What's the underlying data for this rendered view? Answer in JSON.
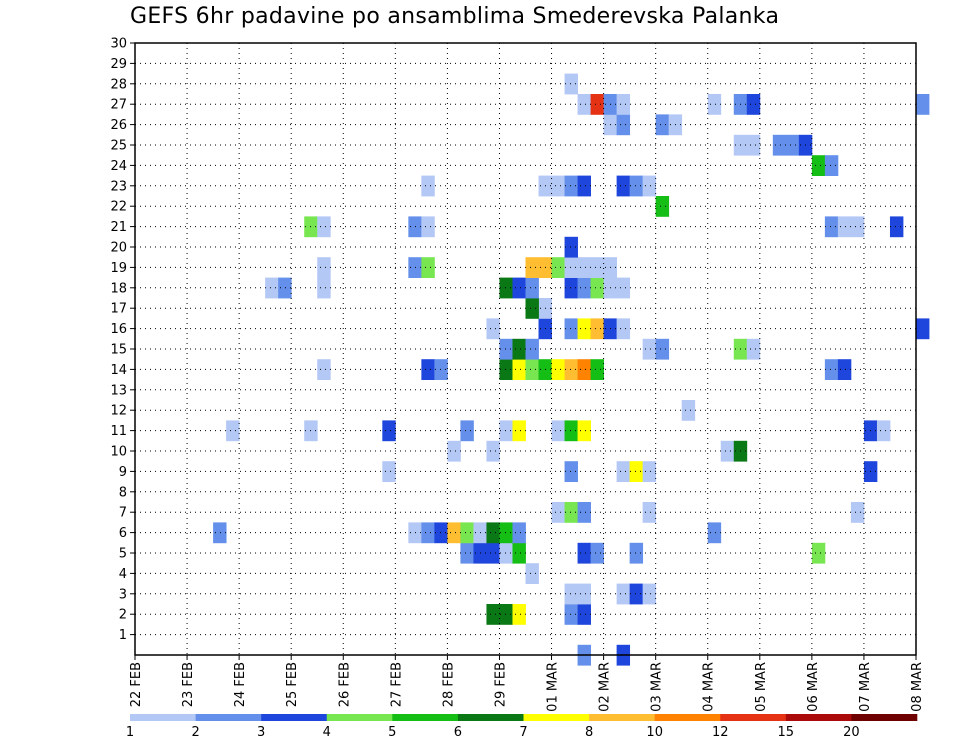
{
  "chart_data": {
    "type": "heatmap",
    "title": "GEFS 6hr padavine po ansamblima Smederevska Palanka",
    "x_ticks": [
      "22 FEB",
      "23 FEB",
      "24 FEB",
      "25 FEB",
      "26 FEB",
      "27 FEB",
      "28 FEB",
      "29 FEB",
      "01 MAR",
      "02 MAR",
      "03 MAR",
      "04 MAR",
      "05 MAR",
      "06 MAR",
      "07 MAR",
      "08 MAR"
    ],
    "y_ticks": [
      "1",
      "2",
      "3",
      "4",
      "5",
      "6",
      "7",
      "8",
      "9",
      "10",
      "11",
      "12",
      "13",
      "14",
      "15",
      "16",
      "17",
      "18",
      "19",
      "20",
      "21",
      "22",
      "23",
      "24",
      "25",
      "26",
      "27",
      "28",
      "29",
      "30"
    ],
    "y_range": [
      0,
      30
    ],
    "time_steps_per_day": 4,
    "grid": "dotted",
    "legend": {
      "position": "bottom",
      "labels": [
        "1",
        "2",
        "3",
        "4",
        "5",
        "6",
        "7",
        "8",
        "10",
        "12",
        "15",
        "20"
      ],
      "colors": [
        "#b4c8f5",
        "#6490eb",
        "#1e46dc",
        "#78e650",
        "#14be14",
        "#0a7814",
        "#ffff00",
        "#ffbe32",
        "#ff8200",
        "#e63214",
        "#aa0a0a",
        "#6e0000"
      ]
    },
    "cells": [
      {
        "m": 0,
        "t": 34,
        "c": 1
      },
      {
        "m": 0,
        "t": 37,
        "c": 2
      },
      {
        "m": 2,
        "t": 27,
        "c": 5
      },
      {
        "m": 2,
        "t": 28,
        "c": 5
      },
      {
        "m": 2,
        "t": 29,
        "c": 6
      },
      {
        "m": 2,
        "t": 33,
        "c": 1
      },
      {
        "m": 2,
        "t": 34,
        "c": 2
      },
      {
        "m": 3,
        "t": 33,
        "c": 0
      },
      {
        "m": 3,
        "t": 34,
        "c": 0
      },
      {
        "m": 3,
        "t": 37,
        "c": 0
      },
      {
        "m": 3,
        "t": 38,
        "c": 2
      },
      {
        "m": 3,
        "t": 39,
        "c": 0
      },
      {
        "m": 4,
        "t": 30,
        "c": 0
      },
      {
        "m": 5,
        "t": 25,
        "c": 1
      },
      {
        "m": 5,
        "t": 26,
        "c": 2
      },
      {
        "m": 5,
        "t": 27,
        "c": 2
      },
      {
        "m": 5,
        "t": 28,
        "c": 0
      },
      {
        "m": 5,
        "t": 29,
        "c": 4
      },
      {
        "m": 5,
        "t": 34,
        "c": 2
      },
      {
        "m": 5,
        "t": 35,
        "c": 1
      },
      {
        "m": 5,
        "t": 38,
        "c": 1
      },
      {
        "m": 5,
        "t": 52,
        "c": 3
      },
      {
        "m": 6,
        "t": 6,
        "c": 1
      },
      {
        "m": 6,
        "t": 21,
        "c": 0
      },
      {
        "m": 6,
        "t": 22,
        "c": 1
      },
      {
        "m": 6,
        "t": 23,
        "c": 2
      },
      {
        "m": 6,
        "t": 24,
        "c": 7
      },
      {
        "m": 6,
        "t": 25,
        "c": 3
      },
      {
        "m": 6,
        "t": 26,
        "c": 0
      },
      {
        "m": 6,
        "t": 27,
        "c": 5
      },
      {
        "m": 6,
        "t": 28,
        "c": 4
      },
      {
        "m": 6,
        "t": 29,
        "c": 1
      },
      {
        "m": 6,
        "t": 44,
        "c": 1
      },
      {
        "m": 7,
        "t": 32,
        "c": 0
      },
      {
        "m": 7,
        "t": 33,
        "c": 3
      },
      {
        "m": 7,
        "t": 34,
        "c": 1
      },
      {
        "m": 7,
        "t": 39,
        "c": 0
      },
      {
        "m": 7,
        "t": 55,
        "c": 0
      },
      {
        "m": 9,
        "t": 19,
        "c": 0
      },
      {
        "m": 9,
        "t": 33,
        "c": 1
      },
      {
        "m": 9,
        "t": 37,
        "c": 0
      },
      {
        "m": 9,
        "t": 38,
        "c": 6
      },
      {
        "m": 9,
        "t": 39,
        "c": 0
      },
      {
        "m": 9,
        "t": 56,
        "c": 2
      },
      {
        "m": 10,
        "t": 24,
        "c": 0
      },
      {
        "m": 10,
        "t": 27,
        "c": 0
      },
      {
        "m": 10,
        "t": 45,
        "c": 0
      },
      {
        "m": 10,
        "t": 46,
        "c": 5
      },
      {
        "m": 11,
        "t": 7,
        "c": 0
      },
      {
        "m": 11,
        "t": 13,
        "c": 0
      },
      {
        "m": 11,
        "t": 19,
        "c": 2
      },
      {
        "m": 11,
        "t": 25,
        "c": 1
      },
      {
        "m": 11,
        "t": 28,
        "c": 0
      },
      {
        "m": 11,
        "t": 29,
        "c": 6
      },
      {
        "m": 11,
        "t": 32,
        "c": 0
      },
      {
        "m": 11,
        "t": 33,
        "c": 4
      },
      {
        "m": 11,
        "t": 34,
        "c": 6
      },
      {
        "m": 11,
        "t": 56,
        "c": 2
      },
      {
        "m": 11,
        "t": 57,
        "c": 0
      },
      {
        "m": 12,
        "t": 42,
        "c": 0
      },
      {
        "m": 14,
        "t": 14,
        "c": 0
      },
      {
        "m": 14,
        "t": 22,
        "c": 2
      },
      {
        "m": 14,
        "t": 23,
        "c": 1
      },
      {
        "m": 14,
        "t": 28,
        "c": 5
      },
      {
        "m": 14,
        "t": 29,
        "c": 6
      },
      {
        "m": 14,
        "t": 30,
        "c": 3
      },
      {
        "m": 14,
        "t": 31,
        "c": 4
      },
      {
        "m": 14,
        "t": 32,
        "c": 6
      },
      {
        "m": 14,
        "t": 33,
        "c": 7
      },
      {
        "m": 14,
        "t": 34,
        "c": 8
      },
      {
        "m": 14,
        "t": 35,
        "c": 4
      },
      {
        "m": 14,
        "t": 53,
        "c": 1
      },
      {
        "m": 14,
        "t": 54,
        "c": 2
      },
      {
        "m": 15,
        "t": 28,
        "c": 1
      },
      {
        "m": 15,
        "t": 29,
        "c": 5
      },
      {
        "m": 15,
        "t": 30,
        "c": 1
      },
      {
        "m": 15,
        "t": 39,
        "c": 0
      },
      {
        "m": 15,
        "t": 40,
        "c": 1
      },
      {
        "m": 15,
        "t": 46,
        "c": 3
      },
      {
        "m": 15,
        "t": 47,
        "c": 0
      },
      {
        "m": 16,
        "t": 27,
        "c": 0
      },
      {
        "m": 16,
        "t": 31,
        "c": 2
      },
      {
        "m": 16,
        "t": 33,
        "c": 1
      },
      {
        "m": 16,
        "t": 34,
        "c": 6
      },
      {
        "m": 16,
        "t": 35,
        "c": 7
      },
      {
        "m": 16,
        "t": 36,
        "c": 2
      },
      {
        "m": 16,
        "t": 37,
        "c": 0
      },
      {
        "m": 16,
        "t": 60,
        "c": 2
      },
      {
        "m": 17,
        "t": 31,
        "c": 0
      },
      {
        "m": 17,
        "t": 30,
        "c": 5
      },
      {
        "m": 18,
        "t": 10,
        "c": 0
      },
      {
        "m": 18,
        "t": 11,
        "c": 1
      },
      {
        "m": 18,
        "t": 14,
        "c": 0
      },
      {
        "m": 18,
        "t": 28,
        "c": 5
      },
      {
        "m": 18,
        "t": 29,
        "c": 2
      },
      {
        "m": 18,
        "t": 30,
        "c": 1
      },
      {
        "m": 18,
        "t": 33,
        "c": 2
      },
      {
        "m": 18,
        "t": 34,
        "c": 1
      },
      {
        "m": 18,
        "t": 35,
        "c": 3
      },
      {
        "m": 18,
        "t": 36,
        "c": 0
      },
      {
        "m": 18,
        "t": 37,
        "c": 0
      },
      {
        "m": 19,
        "t": 30,
        "c": 7
      },
      {
        "m": 19,
        "t": 31,
        "c": 7
      },
      {
        "m": 19,
        "t": 32,
        "c": 3
      },
      {
        "m": 19,
        "t": 33,
        "c": 0
      },
      {
        "m": 19,
        "t": 34,
        "c": 0
      },
      {
        "m": 19,
        "t": 35,
        "c": 0
      },
      {
        "m": 19,
        "t": 36,
        "c": 0
      },
      {
        "m": 19,
        "t": 14,
        "c": 0
      },
      {
        "m": 19,
        "t": 21,
        "c": 1
      },
      {
        "m": 19,
        "t": 22,
        "c": 3
      },
      {
        "m": 20,
        "t": 33,
        "c": 2
      },
      {
        "m": 21,
        "t": 13,
        "c": 3
      },
      {
        "m": 21,
        "t": 14,
        "c": 0
      },
      {
        "m": 21,
        "t": 21,
        "c": 1
      },
      {
        "m": 21,
        "t": 22,
        "c": 0
      },
      {
        "m": 21,
        "t": 53,
        "c": 1
      },
      {
        "m": 21,
        "t": 54,
        "c": 0
      },
      {
        "m": 21,
        "t": 55,
        "c": 0
      },
      {
        "m": 21,
        "t": 58,
        "c": 2
      },
      {
        "m": 22,
        "t": 40,
        "c": 4
      },
      {
        "m": 23,
        "t": 22,
        "c": 0
      },
      {
        "m": 23,
        "t": 31,
        "c": 0
      },
      {
        "m": 23,
        "t": 32,
        "c": 0
      },
      {
        "m": 23,
        "t": 33,
        "c": 1
      },
      {
        "m": 23,
        "t": 34,
        "c": 2
      },
      {
        "m": 23,
        "t": 37,
        "c": 2
      },
      {
        "m": 23,
        "t": 38,
        "c": 1
      },
      {
        "m": 23,
        "t": 39,
        "c": 0
      },
      {
        "m": 24,
        "t": 52,
        "c": 4
      },
      {
        "m": 24,
        "t": 53,
        "c": 1
      },
      {
        "m": 25,
        "t": 46,
        "c": 0
      },
      {
        "m": 25,
        "t": 47,
        "c": 0
      },
      {
        "m": 25,
        "t": 49,
        "c": 1
      },
      {
        "m": 25,
        "t": 50,
        "c": 1
      },
      {
        "m": 25,
        "t": 51,
        "c": 2
      },
      {
        "m": 26,
        "t": 36,
        "c": 0
      },
      {
        "m": 26,
        "t": 37,
        "c": 1
      },
      {
        "m": 26,
        "t": 40,
        "c": 1
      },
      {
        "m": 26,
        "t": 41,
        "c": 0
      },
      {
        "m": 27,
        "t": 34,
        "c": 0
      },
      {
        "m": 27,
        "t": 35,
        "c": 9
      },
      {
        "m": 27,
        "t": 36,
        "c": 1
      },
      {
        "m": 27,
        "t": 37,
        "c": 0
      },
      {
        "m": 27,
        "t": 44,
        "c": 0
      },
      {
        "m": 27,
        "t": 46,
        "c": 1
      },
      {
        "m": 27,
        "t": 47,
        "c": 2
      },
      {
        "m": 27,
        "t": 60,
        "c": 1
      },
      {
        "m": 28,
        "t": 33,
        "c": 0
      }
    ]
  }
}
